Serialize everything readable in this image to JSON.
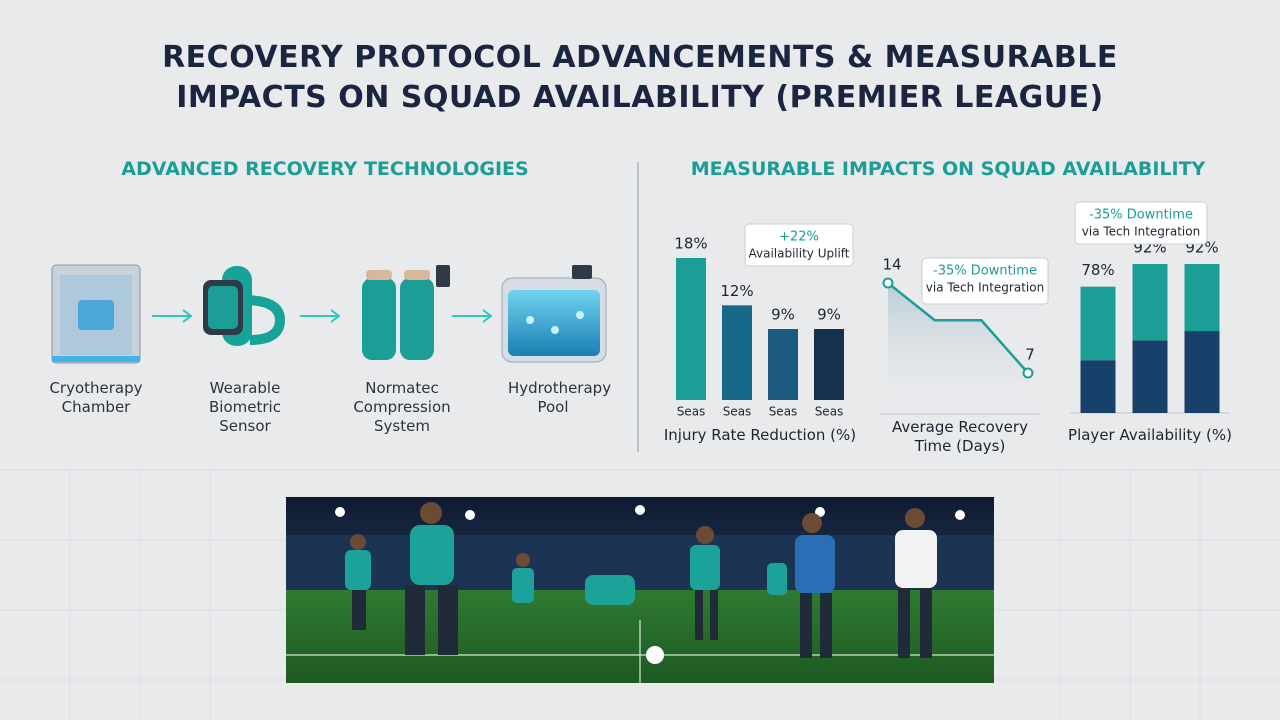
{
  "title": "RECOVERY PROTOCOL ADVANCEMENTS & MEASURABLE IMPACTS ON SQUAD AVAILABILITY (PREMIER LEAGUE)",
  "technologies": {
    "heading": "ADVANCED RECOVERY TECHNOLOGIES",
    "items": [
      "Cryotherapy Chamber",
      "Wearable Biometric Sensor",
      "Normatec Compression System",
      "Hydrotherapy Pool"
    ]
  },
  "impacts_heading": "MEASURABLE IMPACTS ON SQUAD AVAILABILITY",
  "chart_data": [
    {
      "type": "bar",
      "title": "Injury Rate Reduction (%)",
      "categories": [
        "Seas",
        "Seas",
        "Seas",
        "Seas"
      ],
      "values": [
        18,
        12,
        9,
        9
      ],
      "value_labels": [
        "18%",
        "12%",
        "9%",
        "9%"
      ],
      "colors": [
        "#1a9e96",
        "#17698a",
        "#1d5a80",
        "#16304f"
      ],
      "annotation": [
        "+22%",
        "Availability Uplift"
      ]
    },
    {
      "type": "line",
      "title": "Average Recovery Time (Days)",
      "categories": [
        null,
        null,
        null,
        null
      ],
      "values": [
        14,
        11.1,
        11.1,
        7
      ],
      "value_labels": [
        "14",
        null,
        null,
        "7"
      ],
      "color": "#1a9e96",
      "annotation": [
        "-35% Downtime",
        "via Tech Integration"
      ]
    },
    {
      "type": "stacked-bar",
      "title": "Player Availability (%)",
      "categories": [
        null,
        null,
        null
      ],
      "series": [
        {
          "color": "#17406a",
          "values": [
            32.6,
            44.9,
            50.6
          ]
        },
        {
          "color": "#1a9e96",
          "values": [
            45.4,
            47.1,
            41.4
          ]
        }
      ],
      "total_labels": [
        "78%",
        "92%",
        "92%"
      ],
      "annotation": [
        "-35% Downtime",
        "via Tech Integration"
      ]
    }
  ]
}
